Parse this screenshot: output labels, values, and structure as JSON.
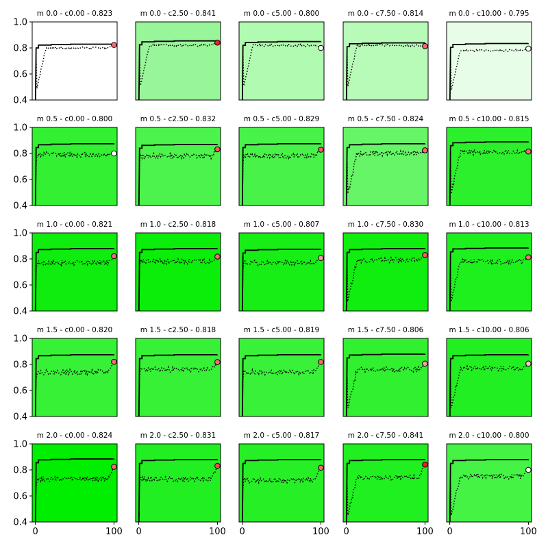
{
  "chart_data": {
    "type": "line",
    "layout": "5x5 grid of small multiples",
    "xlim": [
      -4,
      104
    ],
    "ylim": [
      0.4,
      1.0
    ],
    "x_ticks": [
      0,
      100
    ],
    "y_ticks": [
      0.4,
      0.6,
      0.8,
      1.0
    ],
    "y_tick_labels": [
      "0.4",
      "0.6",
      "0.8",
      "1.0"
    ],
    "x_tick_labels": [
      "0",
      "100"
    ],
    "series_styles": {
      "solid_line": {
        "color": "#000000",
        "style": "solid"
      },
      "dotted_line": {
        "color": "#000000",
        "style": "dotted"
      }
    },
    "marker_colors": {
      "red": "#ee3333",
      "pink": "#ff6677",
      "white": "#ffffff"
    },
    "panels": [
      {
        "title": "m 0.0 - c0.00 - 0.823",
        "bg": "#ffffff",
        "best_level": 0.83,
        "dotted_level": 0.8,
        "marker_value": 0.823,
        "marker_color": "#ff6677"
      },
      {
        "title": "m 0.0 - c2.50 - 0.841",
        "bg": "#99f599",
        "best_level": 0.855,
        "dotted_level": 0.82,
        "marker_value": 0.841,
        "marker_color": "#ee2222"
      },
      {
        "title": "m 0.0 - c5.00 - 0.800",
        "bg": "#b1fab1",
        "best_level": 0.85,
        "dotted_level": 0.82,
        "marker_value": 0.8,
        "marker_color": "#ffffff"
      },
      {
        "title": "m 0.0 - c7.50 - 0.814",
        "bg": "#b8fab8",
        "best_level": 0.84,
        "dotted_level": 0.82,
        "marker_value": 0.814,
        "marker_color": "#ff6677"
      },
      {
        "title": "m 0.0 - c10.00 - 0.795",
        "bg": "#e8fde8",
        "best_level": 0.835,
        "dotted_level": 0.78,
        "marker_value": 0.795,
        "marker_color": "#ffffff"
      },
      {
        "title": "m 0.5 - c0.00 - 0.800",
        "bg": "#33f033",
        "best_level": 0.875,
        "dotted_level": 0.79,
        "marker_value": 0.8,
        "marker_color": "#ffffff"
      },
      {
        "title": "m 0.5 - c2.50 - 0.832",
        "bg": "#4cf34c",
        "best_level": 0.87,
        "dotted_level": 0.78,
        "marker_value": 0.832,
        "marker_color": "#ff5566"
      },
      {
        "title": "m 0.5 - c5.00 - 0.829",
        "bg": "#48f248",
        "best_level": 0.875,
        "dotted_level": 0.78,
        "marker_value": 0.829,
        "marker_color": "#ff5566"
      },
      {
        "title": "m 0.5 - c7.50 - 0.824",
        "bg": "#66f566",
        "best_level": 0.875,
        "dotted_level": 0.8,
        "marker_value": 0.824,
        "marker_color": "#ff6677"
      },
      {
        "title": "m 0.5 - c10.00 - 0.815",
        "bg": "#2cf02c",
        "best_level": 0.89,
        "dotted_level": 0.81,
        "marker_value": 0.815,
        "marker_color": "#ff6677"
      },
      {
        "title": "m 1.0 - c0.00 - 0.821",
        "bg": "#0eed0e",
        "best_level": 0.88,
        "dotted_level": 0.77,
        "marker_value": 0.821,
        "marker_color": "#ff6677"
      },
      {
        "title": "m 1.0 - c2.50 - 0.818",
        "bg": "#0aee0a",
        "best_level": 0.88,
        "dotted_level": 0.78,
        "marker_value": 0.818,
        "marker_color": "#ff6677"
      },
      {
        "title": "m 1.0 - c5.00 - 0.807",
        "bg": "#16ee16",
        "best_level": 0.875,
        "dotted_level": 0.77,
        "marker_value": 0.807,
        "marker_color": "#ff99aa"
      },
      {
        "title": "m 1.0 - c7.50 - 0.830",
        "bg": "#10ee10",
        "best_level": 0.88,
        "dotted_level": 0.79,
        "marker_value": 0.83,
        "marker_color": "#ff5566"
      },
      {
        "title": "m 1.0 - c10.00 - 0.813",
        "bg": "#1ef01e",
        "best_level": 0.885,
        "dotted_level": 0.78,
        "marker_value": 0.813,
        "marker_color": "#ff6677"
      },
      {
        "title": "m 1.5 - c0.00 - 0.820",
        "bg": "#36f136",
        "best_level": 0.875,
        "dotted_level": 0.74,
        "marker_value": 0.82,
        "marker_color": "#ff6677"
      },
      {
        "title": "m 1.5 - c2.50 - 0.818",
        "bg": "#36f136",
        "best_level": 0.875,
        "dotted_level": 0.76,
        "marker_value": 0.818,
        "marker_color": "#ff6677"
      },
      {
        "title": "m 1.5 - c5.00 - 0.819",
        "bg": "#38f138",
        "best_level": 0.875,
        "dotted_level": 0.74,
        "marker_value": 0.819,
        "marker_color": "#ff6677"
      },
      {
        "title": "m 1.5 - c7.50 - 0.806",
        "bg": "#30f030",
        "best_level": 0.88,
        "dotted_level": 0.76,
        "marker_value": 0.806,
        "marker_color": "#ff99aa"
      },
      {
        "title": "m 1.5 - c10.00 - 0.806",
        "bg": "#22ef22",
        "best_level": 0.875,
        "dotted_level": 0.77,
        "marker_value": 0.806,
        "marker_color": "#ffbbcc"
      },
      {
        "title": "m 2.0 - c0.00 - 0.824",
        "bg": "#00ee00",
        "best_level": 0.885,
        "dotted_level": 0.73,
        "marker_value": 0.824,
        "marker_color": "#ff6677"
      },
      {
        "title": "m 2.0 - c2.50 - 0.831",
        "bg": "#22ef22",
        "best_level": 0.88,
        "dotted_level": 0.73,
        "marker_value": 0.831,
        "marker_color": "#ff4455"
      },
      {
        "title": "m 2.0 - c5.00 - 0.817",
        "bg": "#26ef26",
        "best_level": 0.88,
        "dotted_level": 0.72,
        "marker_value": 0.817,
        "marker_color": "#ff6677"
      },
      {
        "title": "m 2.0 - c7.50 - 0.841",
        "bg": "#20ef20",
        "best_level": 0.88,
        "dotted_level": 0.74,
        "marker_value": 0.841,
        "marker_color": "#ee2222"
      },
      {
        "title": "m 2.0 - c10.00 - 0.800",
        "bg": "#44f344",
        "best_level": 0.88,
        "dotted_level": 0.75,
        "marker_value": 0.8,
        "marker_color": "#ffffff"
      }
    ]
  }
}
